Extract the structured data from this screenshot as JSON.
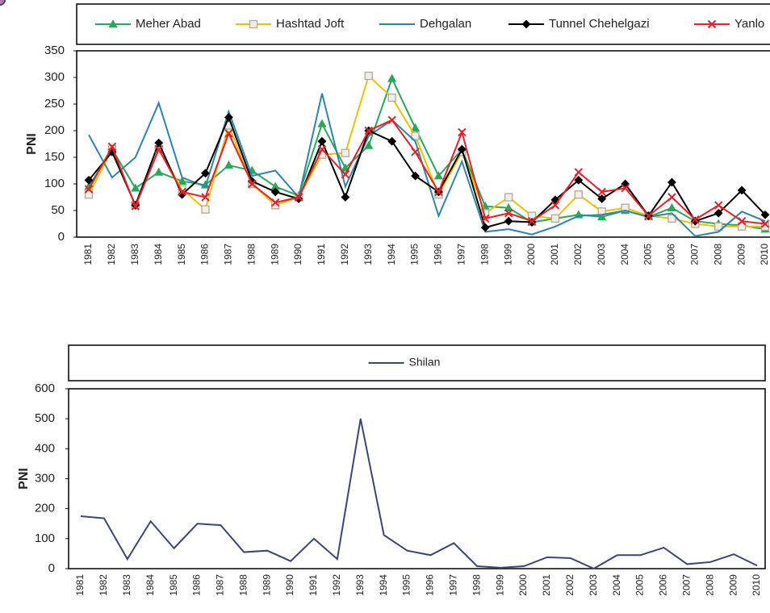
{
  "chart_data": [
    {
      "type": "line",
      "ylabel": "PNI",
      "categories": [
        "1981",
        "1982",
        "1983",
        "1984",
        "1985",
        "1986",
        "1987",
        "1988",
        "1989",
        "1990",
        "1991",
        "1992",
        "1993",
        "1994",
        "1995",
        "1996",
        "1997",
        "1998",
        "1999",
        "2000",
        "2001",
        "2002",
        "2003",
        "2004",
        "2005",
        "2006",
        "2007",
        "2008",
        "2009",
        "2010"
      ],
      "ylim": [
        0,
        350
      ],
      "yticks": [
        0,
        50,
        100,
        150,
        200,
        250,
        300,
        350
      ],
      "series": [
        {
          "name": "Meher Abad",
          "color": "#2aa85a",
          "marker": "triangle",
          "values": [
            95,
            165,
            92,
            122,
            105,
            98,
            135,
            125,
            95,
            78,
            213,
            130,
            172,
            298,
            205,
            115,
            165,
            58,
            55,
            28,
            35,
            42,
            38,
            50,
            38,
            55,
            30,
            25,
            22,
            15
          ]
        },
        {
          "name": "Hashtad Joft",
          "color": "#f0c000",
          "marker": "square",
          "values": [
            80,
            165,
            60,
            165,
            90,
            52,
            210,
            100,
            60,
            75,
            155,
            158,
            303,
            262,
            190,
            80,
            160,
            45,
            75,
            40,
            35,
            80,
            48,
            55,
            40,
            35,
            25,
            20,
            20,
            20
          ]
        },
        {
          "name": "Dehgalan",
          "color": "#2c86a8",
          "marker": "circle",
          "values": [
            192,
            112,
            150,
            252,
            112,
            95,
            236,
            115,
            125,
            75,
            270,
            95,
            190,
            220,
            180,
            40,
            142,
            10,
            15,
            5,
            20,
            40,
            42,
            50,
            38,
            45,
            2,
            10,
            48,
            30
          ]
        },
        {
          "name": "Tunnel Chehelgazi",
          "color": "#000000",
          "marker": "diamond",
          "values": [
            107,
            160,
            60,
            177,
            80,
            120,
            225,
            105,
            85,
            72,
            180,
            75,
            200,
            180,
            115,
            85,
            165,
            18,
            30,
            28,
            70,
            107,
            72,
            100,
            40,
            103,
            30,
            45,
            88,
            42
          ]
        },
        {
          "name": "Yanlo",
          "color": "#e8202a",
          "marker": "x",
          "values": [
            90,
            170,
            58,
            165,
            85,
            75,
            195,
            100,
            65,
            75,
            165,
            118,
            200,
            220,
            160,
            85,
            197,
            35,
            45,
            30,
            60,
            122,
            85,
            92,
            40,
            75,
            33,
            60,
            30,
            25
          ]
        }
      ]
    },
    {
      "type": "line",
      "ylabel": "PNI",
      "categories": [
        "1981",
        "1982",
        "1983",
        "1984",
        "1985",
        "1986",
        "1987",
        "1988",
        "1989",
        "1990",
        "1991",
        "1992",
        "1993",
        "1994",
        "1995",
        "1996",
        "1997",
        "1998",
        "1999",
        "2000",
        "2001",
        "2002",
        "2003",
        "2004",
        "2005",
        "2006",
        "2007",
        "2008",
        "2009",
        "2010"
      ],
      "ylim": [
        0,
        600
      ],
      "yticks": [
        0,
        100,
        200,
        300,
        400,
        500,
        600
      ],
      "series": [
        {
          "name": "Shilan",
          "color": "#3a4674",
          "marker": "circle",
          "marker_color": "#b07aa5",
          "values": [
            175,
            168,
            32,
            158,
            68,
            150,
            145,
            55,
            60,
            25,
            100,
            32,
            500,
            112,
            60,
            45,
            85,
            8,
            3,
            8,
            38,
            35,
            0,
            45,
            45,
            70,
            15,
            22,
            48,
            10
          ]
        }
      ]
    }
  ]
}
